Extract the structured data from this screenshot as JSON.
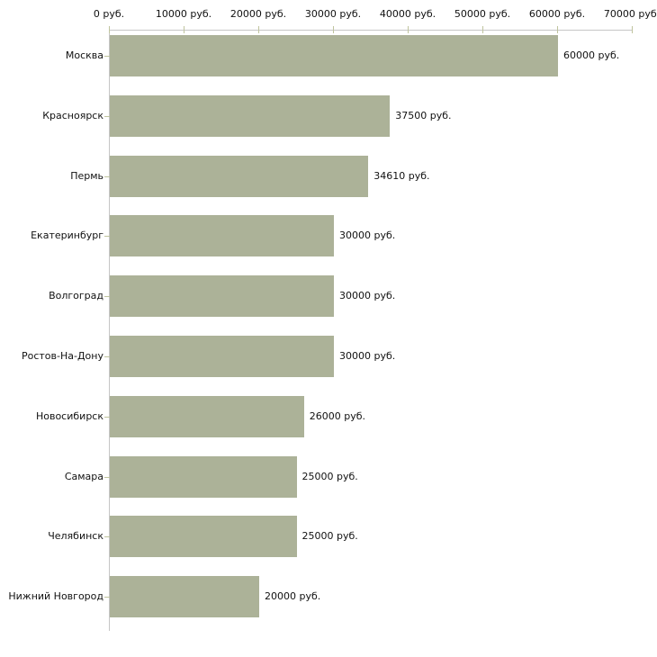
{
  "chart_data": {
    "type": "bar",
    "orientation": "horizontal",
    "title": "",
    "xlabel": "",
    "ylabel": "",
    "unit": "руб.",
    "grid": false,
    "legend": null,
    "xlim": [
      0,
      70000
    ],
    "x_ticks": [
      0,
      10000,
      20000,
      30000,
      40000,
      50000,
      60000,
      70000
    ],
    "x_tick_labels": [
      "0 руб.",
      "10000 руб.",
      "20000 руб.",
      "30000 руб.",
      "40000 руб.",
      "50000 руб.",
      "60000 руб.",
      "70000 руб."
    ],
    "categories": [
      "Москва",
      "Красноярск",
      "Пермь",
      "Екатеринбург",
      "Волгоград",
      "Ростов-На-Дону",
      "Новосибирск",
      "Самара",
      "Челябинск",
      "Нижний Новгород"
    ],
    "values": [
      60000,
      37500,
      34610,
      30000,
      30000,
      30000,
      26000,
      25000,
      25000,
      20000
    ],
    "value_labels": [
      "60000 руб.",
      "37500 руб.",
      "34610 руб.",
      "30000 руб.",
      "30000 руб.",
      "30000 руб.",
      "26000 руб.",
      "25000 руб.",
      "25000 руб.",
      "20000 руб."
    ],
    "colors": {
      "bar": "#acb298",
      "axis": "#c6c6c6",
      "tick": "#c0c49e",
      "text": "#111111",
      "background": "#ffffff"
    }
  }
}
